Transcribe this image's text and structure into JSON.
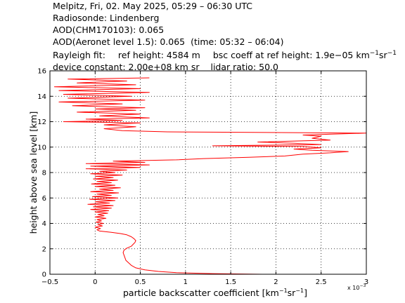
{
  "header": {
    "title": "Melpitz, Fri, 02. May 2025, 05:29 – 06:30 UTC",
    "radiosonde": "Radiosonde: Lindenberg",
    "aod_chm": "AOD(CHM170103): 0.065",
    "aod_aeronet": "AOD(Aeronet level 1.5): 0.065",
    "aeronet_time": "(time: 05:32 – 06:04)",
    "rayleigh_label": "Rayleigh fit:",
    "ref_height": "ref height: 4584 m",
    "bsc_coeff_prefix": "bsc coeff at ref height: 1.9e−05 km",
    "bsc_unit_sup1": "−1",
    "bsc_unit_sr": "sr",
    "bsc_unit_sup2": "−1",
    "device_constant": "device constant: 2.00e+08 km sr",
    "lidar_ratio": "lidar ratio: 50.0"
  },
  "chart_data": {
    "type": "line",
    "xlabel_main": "particle backscatter coefficient [km",
    "xlabel_sup1": "−1",
    "xlabel_sr": "sr",
    "xlabel_sup2": "−1",
    "xlabel_end": "]",
    "ylabel": "height above sea level [km]",
    "x_multiplier_base": "x 10",
    "x_multiplier_exp": "−3",
    "xlim": [
      -0.5,
      3
    ],
    "ylim": [
      0,
      16
    ],
    "xticks": [
      -0.5,
      0,
      0.5,
      1,
      1.5,
      2,
      2.5,
      3
    ],
    "xtick_labels": [
      "−0.5",
      "0",
      "0.5",
      "1",
      "1.5",
      "2",
      "2.5",
      "3"
    ],
    "yticks": [
      0,
      2,
      4,
      6,
      8,
      10,
      12,
      14,
      16
    ],
    "ytick_labels": [
      "0",
      "2",
      "4",
      "6",
      "8",
      "10",
      "12",
      "14",
      "16"
    ],
    "grid": true,
    "series_color": "#ff0000",
    "series": [
      {
        "points": [
          [
            1.85,
            0.0
          ],
          [
            1.3,
            0.05
          ],
          [
            0.9,
            0.12
          ],
          [
            0.7,
            0.22
          ],
          [
            0.55,
            0.35
          ],
          [
            0.45,
            0.5
          ],
          [
            0.4,
            0.7
          ],
          [
            0.37,
            0.9
          ],
          [
            0.34,
            1.1
          ],
          [
            0.33,
            1.3
          ],
          [
            0.32,
            1.5
          ],
          [
            0.31,
            1.7
          ],
          [
            0.32,
            1.9
          ],
          [
            0.35,
            2.05
          ],
          [
            0.4,
            2.2
          ],
          [
            0.42,
            2.35
          ],
          [
            0.44,
            2.5
          ],
          [
            0.45,
            2.65
          ],
          [
            0.43,
            2.8
          ],
          [
            0.4,
            2.95
          ],
          [
            0.35,
            3.1
          ],
          [
            0.28,
            3.2
          ],
          [
            0.18,
            3.3
          ],
          [
            0.05,
            3.4
          ],
          [
            0.02,
            3.5
          ],
          [
            0.06,
            3.6
          ],
          [
            0.0,
            3.7
          ],
          [
            0.08,
            3.8
          ],
          [
            0.03,
            3.9
          ],
          [
            0.09,
            4.0
          ],
          [
            0.01,
            4.1
          ],
          [
            0.07,
            4.2
          ],
          [
            0.02,
            4.3
          ],
          [
            0.12,
            4.4
          ],
          [
            0.0,
            4.5
          ],
          [
            0.1,
            4.6
          ],
          [
            0.03,
            4.7
          ],
          [
            0.14,
            4.8
          ],
          [
            0.0,
            4.9
          ],
          [
            0.15,
            5.0
          ],
          [
            -0.05,
            5.1
          ],
          [
            0.18,
            5.2
          ],
          [
            -0.02,
            5.3
          ],
          [
            0.2,
            5.4
          ],
          [
            -0.08,
            5.5
          ],
          [
            0.16,
            5.6
          ],
          [
            0.0,
            5.7
          ],
          [
            0.22,
            5.8
          ],
          [
            -0.06,
            5.9
          ],
          [
            0.25,
            6.0
          ],
          [
            -0.03,
            6.1
          ],
          [
            0.18,
            6.2
          ],
          [
            0.02,
            6.3
          ],
          [
            0.26,
            6.4
          ],
          [
            -0.05,
            6.5
          ],
          [
            0.2,
            6.6
          ],
          [
            0.05,
            6.7
          ],
          [
            0.28,
            6.8
          ],
          [
            0.0,
            6.9
          ],
          [
            0.22,
            7.0
          ],
          [
            -0.04,
            7.1
          ],
          [
            0.18,
            7.2
          ],
          [
            0.02,
            7.3
          ],
          [
            0.25,
            7.4
          ],
          [
            -0.02,
            7.5
          ],
          [
            0.2,
            7.6
          ],
          [
            0.0,
            7.7
          ],
          [
            0.3,
            7.8
          ],
          [
            -0.05,
            7.9
          ],
          [
            0.22,
            8.0
          ],
          [
            0.05,
            8.1
          ],
          [
            0.35,
            8.2
          ],
          [
            -0.1,
            8.3
          ],
          [
            0.5,
            8.4
          ],
          [
            -0.05,
            8.5
          ],
          [
            0.6,
            8.6
          ],
          [
            -0.1,
            8.7
          ],
          [
            0.55,
            8.8
          ],
          [
            0.2,
            8.9
          ],
          [
            0.9,
            9.0
          ],
          [
            1.2,
            9.1
          ],
          [
            1.7,
            9.2
          ],
          [
            2.1,
            9.3
          ],
          [
            2.3,
            9.45
          ],
          [
            2.6,
            9.55
          ],
          [
            2.8,
            9.65
          ],
          [
            2.4,
            9.75
          ],
          [
            2.2,
            9.85
          ],
          [
            2.5,
            9.95
          ],
          [
            2.3,
            10.05
          ],
          [
            1.3,
            10.1
          ],
          [
            2.5,
            10.2
          ],
          [
            2.2,
            10.3
          ],
          [
            1.8,
            10.4
          ],
          [
            2.6,
            10.55
          ],
          [
            2.4,
            10.7
          ],
          [
            2.5,
            10.85
          ],
          [
            2.3,
            10.95
          ],
          [
            3.0,
            11.1
          ],
          [
            0.8,
            11.2
          ],
          [
            0.3,
            11.3
          ],
          [
            0.1,
            11.45
          ],
          [
            0.45,
            11.6
          ],
          [
            0.1,
            11.75
          ],
          [
            0.5,
            11.9
          ],
          [
            -0.35,
            12.0
          ],
          [
            0.3,
            12.1
          ],
          [
            -0.1,
            12.2
          ],
          [
            0.6,
            12.3
          ],
          [
            0.05,
            12.45
          ],
          [
            0.5,
            12.6
          ],
          [
            -0.2,
            12.75
          ],
          [
            0.45,
            12.9
          ],
          [
            0.0,
            13.0
          ],
          [
            0.55,
            13.1
          ],
          [
            -0.25,
            13.25
          ],
          [
            0.3,
            13.4
          ],
          [
            -0.4,
            13.55
          ],
          [
            0.55,
            13.7
          ],
          [
            -0.3,
            13.85
          ],
          [
            0.4,
            14.0
          ],
          [
            -0.35,
            14.15
          ],
          [
            0.6,
            14.3
          ],
          [
            -0.4,
            14.45
          ],
          [
            0.5,
            14.6
          ],
          [
            -0.45,
            14.75
          ],
          [
            0.45,
            14.9
          ],
          [
            -0.2,
            15.05
          ],
          [
            0.35,
            15.2
          ],
          [
            -0.3,
            15.35
          ],
          [
            0.6,
            15.45
          ]
        ]
      }
    ]
  }
}
